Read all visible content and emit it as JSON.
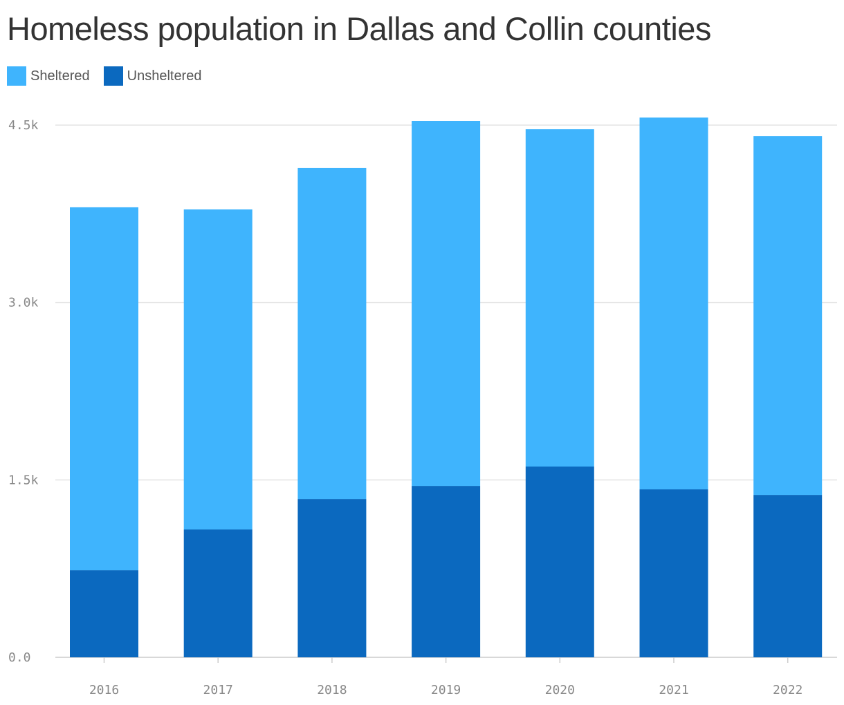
{
  "chart_data": {
    "type": "bar",
    "stacked": true,
    "title": "Homeless population in Dallas and Collin counties",
    "categories": [
      "2016",
      "2017",
      "2018",
      "2019",
      "2020",
      "2021",
      "2022"
    ],
    "series": [
      {
        "name": "Sheltered",
        "color": "#3fb4fd",
        "values": [
          3069,
          2706,
          2800,
          3086,
          2852,
          3144,
          3033
        ]
      },
      {
        "name": "Unsheltered",
        "color": "#0b69bf",
        "values": [
          736,
          1081,
          1338,
          1449,
          1613,
          1420,
          1373
        ]
      }
    ],
    "ylim": [
      0,
      4500
    ],
    "yticks": [
      0,
      1500,
      3000,
      4500
    ],
    "ytick_labels": [
      "0.0",
      "1.5k",
      "3.0k",
      "4.5k"
    ],
    "xlabel": "",
    "ylabel": "",
    "grid": true,
    "legend_position": "top-left"
  }
}
